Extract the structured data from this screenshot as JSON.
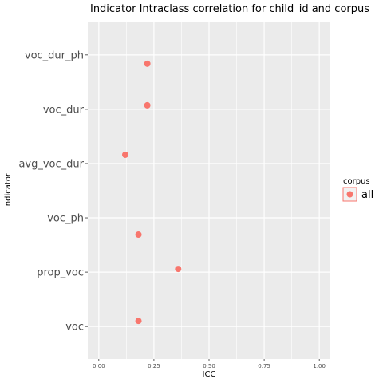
{
  "chart_data": {
    "type": "scatter",
    "title": "Indicator Intraclass correlation for child_id and corpus",
    "xlabel": "ICC",
    "ylabel": "indicator",
    "xlim": [
      -0.05,
      1.05
    ],
    "xticks": [
      0.0,
      0.25,
      0.5,
      0.75,
      1.0
    ],
    "xtick_labels": [
      "0.00",
      "0.25",
      "0.50",
      "0.75",
      "1.00"
    ],
    "categories": [
      "voc_dur_ph",
      "voc_dur",
      "avg_voc_dur",
      "voc_ph",
      "prop_voc",
      "voc"
    ],
    "grid": true,
    "legend": {
      "title": "corpus",
      "placement": "right",
      "entries": [
        "all"
      ]
    },
    "colors": {
      "panel": "#ebebeb",
      "grid": "#ffffff",
      "point": "#f8766d"
    },
    "series": [
      {
        "name": "all",
        "points": [
          {
            "indicator": "voc_dur_ph",
            "icc": 0.22
          },
          {
            "indicator": "voc_dur",
            "icc": 0.22
          },
          {
            "indicator": "avg_voc_dur",
            "icc": 0.12
          },
          {
            "indicator": "voc_ph",
            "icc": 0.18
          },
          {
            "indicator": "prop_voc",
            "icc": 0.36
          },
          {
            "indicator": "voc",
            "icc": 0.18
          }
        ]
      }
    ]
  }
}
